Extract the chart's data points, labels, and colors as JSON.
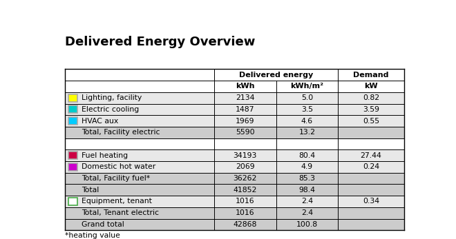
{
  "title": "Delivered Energy Overview",
  "title_fontsize": 13,
  "rows": [
    {
      "label": "Lighting, facility",
      "kwh": "2134",
      "kwh_m2": "5.0",
      "kw": "0.82",
      "color": "#FFFF00",
      "color_border": "#AAAAAA",
      "bg": "#E8E8E8",
      "is_total": false,
      "show_color": true,
      "color_only_border": false
    },
    {
      "label": "Electric cooling",
      "kwh": "1487",
      "kwh_m2": "3.5",
      "kw": "3.59",
      "color": "#00CCCC",
      "color_border": "#AAAAAA",
      "bg": "#E8E8E8",
      "is_total": false,
      "show_color": true,
      "color_only_border": false
    },
    {
      "label": "HVAC aux",
      "kwh": "1969",
      "kwh_m2": "4.6",
      "kw": "0.55",
      "color": "#00CCFF",
      "color_border": "#AAAAAA",
      "bg": "#E8E8E8",
      "is_total": false,
      "show_color": true,
      "color_only_border": false
    },
    {
      "label": "Total, Facility electric",
      "kwh": "5590",
      "kwh_m2": "13.2",
      "kw": "",
      "color": "",
      "color_border": "",
      "bg": "#CCCCCC",
      "is_total": true,
      "show_color": false,
      "color_only_border": false
    },
    {
      "label": "",
      "kwh": "",
      "kwh_m2": "",
      "kw": "",
      "color": "",
      "color_border": "",
      "bg": "#FFFFFF",
      "is_total": false,
      "show_color": false,
      "color_only_border": false
    },
    {
      "label": "Fuel heating",
      "kwh": "34193",
      "kwh_m2": "80.4",
      "kw": "27.44",
      "color": "#CC0044",
      "color_border": "#AAAAAA",
      "bg": "#E8E8E8",
      "is_total": false,
      "show_color": true,
      "color_only_border": false
    },
    {
      "label": "Domestic hot water",
      "kwh": "2069",
      "kwh_m2": "4.9",
      "kw": "0.24",
      "color": "#CC00CC",
      "color_border": "#AAAAAA",
      "bg": "#E8E8E8",
      "is_total": false,
      "show_color": true,
      "color_only_border": false
    },
    {
      "label": "Total, Facility fuel*",
      "kwh": "36262",
      "kwh_m2": "85.3",
      "kw": "",
      "color": "",
      "color_border": "",
      "bg": "#CCCCCC",
      "is_total": true,
      "show_color": false,
      "color_only_border": false
    },
    {
      "label": "Total",
      "kwh": "41852",
      "kwh_m2": "98.4",
      "kw": "",
      "color": "",
      "color_border": "",
      "bg": "#CCCCCC",
      "is_total": true,
      "show_color": false,
      "color_only_border": false
    },
    {
      "label": "Equipment, tenant",
      "kwh": "1016",
      "kwh_m2": "2.4",
      "kw": "0.34",
      "color": "#FFFFFF",
      "color_border": "#44AA44",
      "bg": "#E8E8E8",
      "is_total": false,
      "show_color": true,
      "color_only_border": true
    },
    {
      "label": "Total, Tenant electric",
      "kwh": "1016",
      "kwh_m2": "2.4",
      "kw": "",
      "color": "",
      "color_border": "",
      "bg": "#CCCCCC",
      "is_total": true,
      "show_color": false,
      "color_only_border": false
    },
    {
      "label": "Grand total",
      "kwh": "42868",
      "kwh_m2": "100.8",
      "kw": "",
      "color": "",
      "color_border": "",
      "bg": "#CCCCCC",
      "is_total": true,
      "show_color": false,
      "color_only_border": false
    }
  ],
  "footer": "*heating value",
  "bg_color": "#FFFFFF",
  "border_color": "#000000",
  "text_color": "#000000"
}
